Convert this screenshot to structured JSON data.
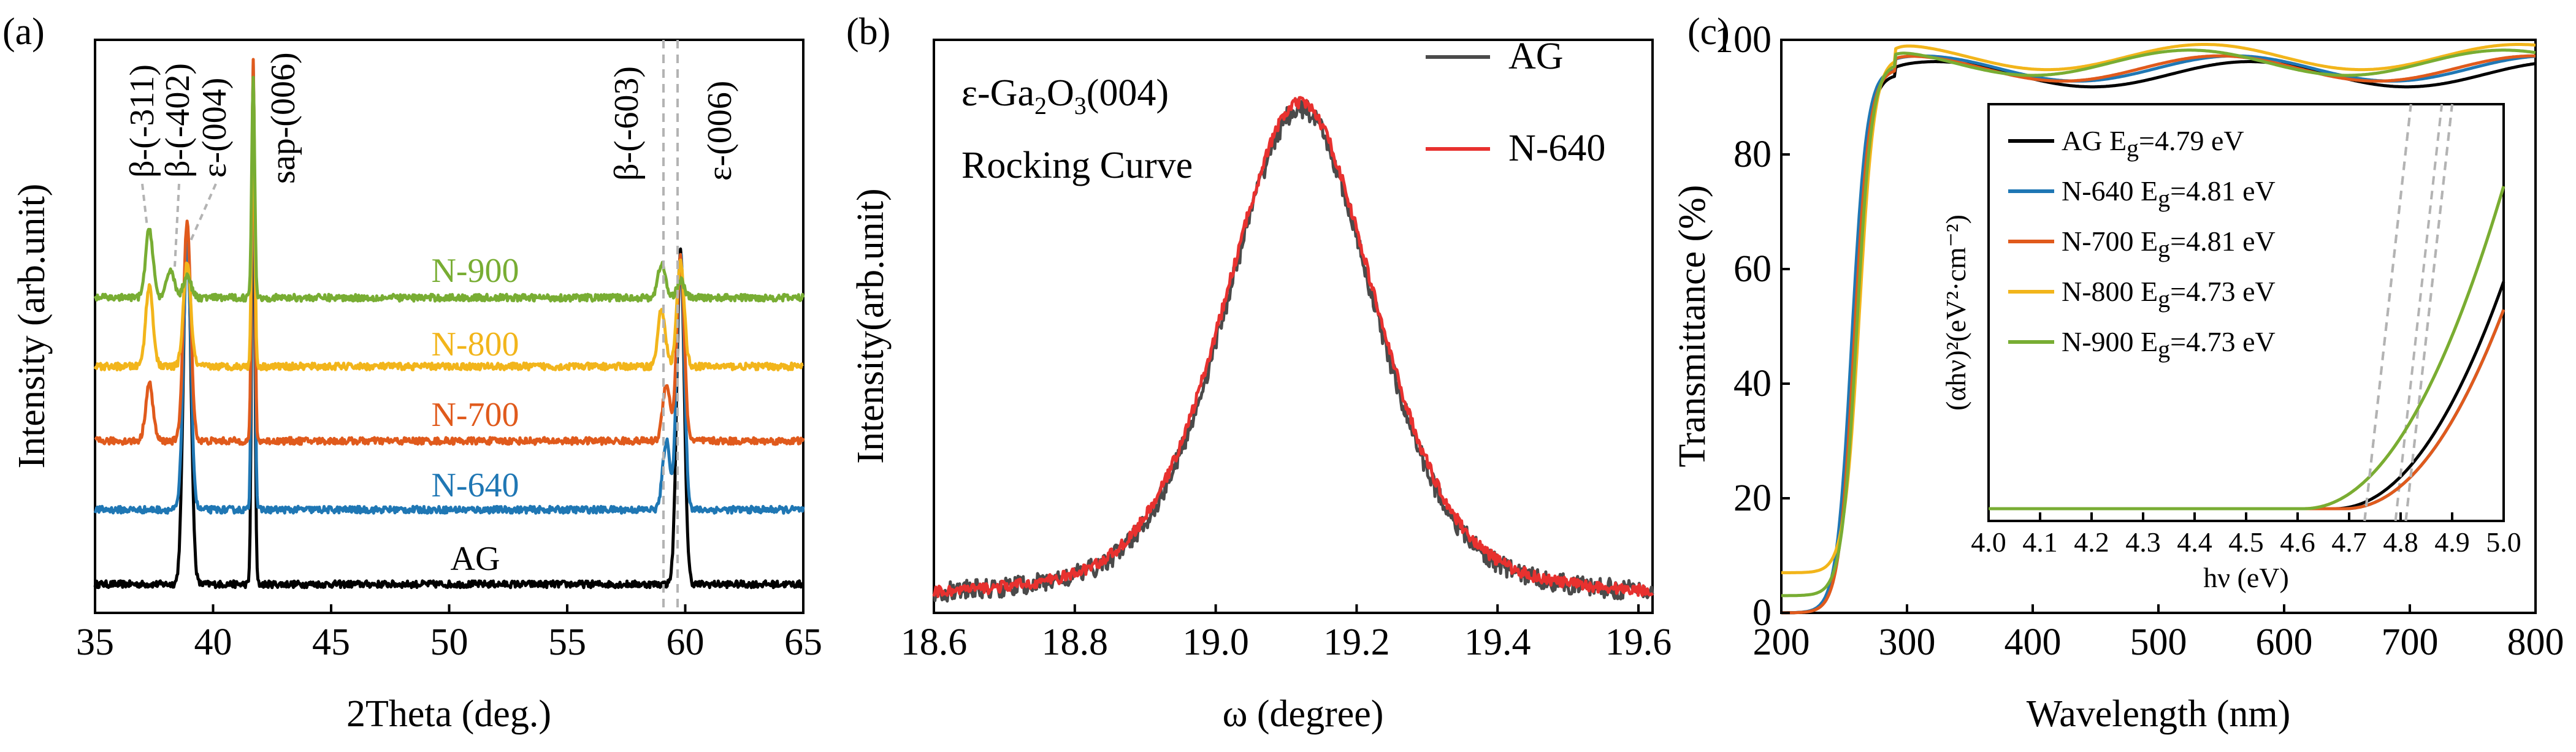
{
  "chart_data": [
    {
      "panel": "(a)",
      "type": "line",
      "xlabel": "2Theta (deg.)",
      "ylabel": "Intensity (arb.unit)",
      "xlim": [
        35,
        65
      ],
      "xticks": [
        "35",
        "40",
        "45",
        "50",
        "55",
        "60",
        "65"
      ],
      "series": [
        {
          "name": "AG",
          "color": "#000000",
          "baseline": 0.05,
          "peaks": [
            [
              38.9,
              0.63
            ],
            [
              41.7,
              0.85
            ],
            [
              59.8,
              0.58
            ]
          ]
        },
        {
          "name": "N-640",
          "color": "#1f77b4",
          "baseline": 0.18,
          "peaks": [
            [
              38.9,
              0.46
            ],
            [
              41.7,
              0.78
            ],
            [
              59.2,
              0.12
            ],
            [
              59.8,
              0.45
            ]
          ]
        },
        {
          "name": "N-700",
          "color": "#e05a1c",
          "baseline": 0.3,
          "peaks": [
            [
              37.3,
              0.1
            ],
            [
              38.9,
              0.38
            ],
            [
              41.7,
              0.66
            ],
            [
              59.2,
              0.1
            ],
            [
              59.8,
              0.32
            ]
          ]
        },
        {
          "name": "N-800",
          "color": "#f2b51b",
          "baseline": 0.43,
          "peaks": [
            [
              37.3,
              0.14
            ],
            [
              38.9,
              0.18
            ],
            [
              41.7,
              0.5
            ],
            [
              59.0,
              0.1
            ],
            [
              59.8,
              0.18
            ]
          ]
        },
        {
          "name": "N-900",
          "color": "#78ad33",
          "baseline": 0.55,
          "peaks": [
            [
              37.3,
              0.12
            ],
            [
              38.2,
              0.05
            ],
            [
              38.9,
              0.04
            ],
            [
              41.7,
              0.38
            ],
            [
              59.0,
              0.06
            ],
            [
              59.8,
              0.03
            ]
          ]
        }
      ],
      "annotations": [
        "β-(-311)",
        "β-(-402)",
        "ε-(004)",
        "sap-(006)",
        "β-(-603)",
        "ε-(006)"
      ],
      "dashed_vlines": [
        59.0,
        59.6
      ]
    },
    {
      "panel": "(b)",
      "type": "line",
      "title_line1": "ε-Ga",
      "title_sub1": "2",
      "title_mid": "O",
      "title_sub2": "3",
      "title_end": "(004)",
      "title_line2": "Rocking Curve",
      "xlabel": "ω (degree)",
      "ylabel": "Intensity(arb.unit)",
      "xlim": [
        18.6,
        19.62
      ],
      "xticks": [
        "18.6",
        "18.8",
        "19.0",
        "19.2",
        "19.4",
        "19.6"
      ],
      "series": [
        {
          "name": "AG",
          "color": "#4a4a4a",
          "center": 19.12,
          "fwhm": 0.25,
          "peak": 0.86
        },
        {
          "name": "N-640",
          "color": "#e8312f",
          "center": 19.12,
          "fwhm": 0.255,
          "peak": 0.87
        }
      ]
    },
    {
      "panel": "(c)",
      "type": "line",
      "xlabel": "Wavelength (nm)",
      "ylabel": "Transmittance (%)",
      "xlim": [
        200,
        800
      ],
      "ylim": [
        0,
        100
      ],
      "xticks": [
        "200",
        "300",
        "400",
        "500",
        "600",
        "700",
        "800"
      ],
      "yticks": [
        "0",
        "20",
        "40",
        "60",
        "80",
        "100"
      ],
      "series": [
        {
          "name": "AG",
          "color": "#000000",
          "edge_nm": 257,
          "plateau": 94
        },
        {
          "name": "N-640",
          "color": "#1f77b4",
          "edge_nm": 256,
          "plateau": 95
        },
        {
          "name": "N-700",
          "color": "#e05a1c",
          "edge_nm": 258,
          "plateau": 95
        },
        {
          "name": "N-800",
          "color": "#f2b51b",
          "edge_nm": 262,
          "plateau": 97
        },
        {
          "name": "N-900",
          "color": "#78ad33",
          "edge_nm": 260,
          "plateau": 96
        }
      ],
      "inset": {
        "xlabel": "hν (eV)",
        "ylabel": "(αhν)²(eV²·cm⁻²)",
        "xlim": [
          4.0,
          5.0
        ],
        "xticks": [
          "4.0",
          "4.1",
          "4.2",
          "4.3",
          "4.4",
          "4.5",
          "4.6",
          "4.7",
          "4.8",
          "4.9",
          "5.0"
        ],
        "legend": [
          {
            "name": "AG",
            "eg_label": "E",
            "eg_sub": "g",
            "eg_value": "=4.79 eV",
            "color": "#000000",
            "eg": 4.79
          },
          {
            "name": "N-640",
            "eg_label": "E",
            "eg_sub": "g",
            "eg_value": "=4.81 eV",
            "color": "#1f77b4",
            "eg": 4.81
          },
          {
            "name": "N-700",
            "eg_label": "E",
            "eg_sub": "g",
            "eg_value": "=4.81 eV",
            "color": "#e05a1c",
            "eg": 4.81
          },
          {
            "name": "N-800",
            "eg_label": "E",
            "eg_sub": "g",
            "eg_value": "=4.73 eV",
            "color": "#f2b51b",
            "eg": 4.73
          },
          {
            "name": "N-900",
            "eg_label": "E",
            "eg_sub": "g",
            "eg_value": "=4.73 eV",
            "color": "#78ad33",
            "eg": 4.73
          }
        ]
      }
    }
  ]
}
